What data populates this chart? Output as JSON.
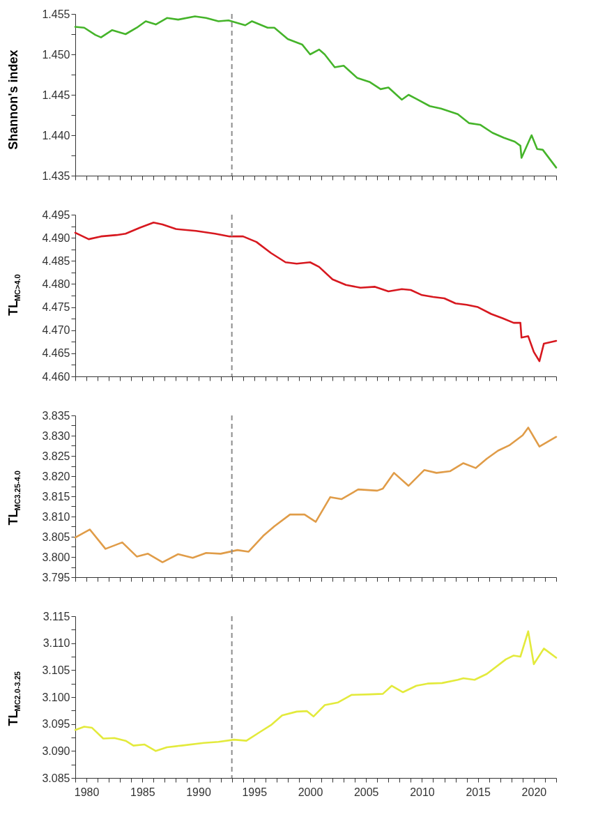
{
  "chart_data": [
    {
      "type": "line",
      "ylabel": "Shannon's index",
      "xlim": [
        1979,
        2022
      ],
      "ylim": [
        1.435,
        1.455
      ],
      "tick_labels": "y",
      "xticks": [
        {
          "value": 1979,
          "label": null
        },
        1980,
        {
          "value": 1981,
          "label": null
        },
        {
          "value": 1982,
          "label": null
        },
        {
          "value": 1983,
          "label": null
        },
        {
          "value": 1984,
          "label": null
        },
        1985,
        {
          "value": 1986,
          "label": null
        },
        {
          "value": 1987,
          "label": null
        },
        {
          "value": 1988,
          "label": null
        },
        {
          "value": 1989,
          "label": null
        },
        1990,
        {
          "value": 1991,
          "label": null
        },
        {
          "value": 1992,
          "label": null
        },
        {
          "value": 1993,
          "label": null
        },
        {
          "value": 1994,
          "label": null
        },
        1995,
        {
          "value": 1996,
          "label": null
        },
        {
          "value": 1997,
          "label": null
        },
        {
          "value": 1998,
          "label": null
        },
        {
          "value": 1999,
          "label": null
        },
        2000,
        {
          "value": 2001,
          "label": null
        },
        {
          "value": 2002,
          "label": null
        },
        {
          "value": 2003,
          "label": null
        },
        {
          "value": 2004,
          "label": null
        },
        2005,
        {
          "value": 2006,
          "label": null
        },
        {
          "value": 2007,
          "label": null
        },
        {
          "value": 2008,
          "label": null
        },
        {
          "value": 2009,
          "label": null
        },
        2010,
        {
          "value": 2011,
          "label": null
        },
        {
          "value": 2012,
          "label": null
        },
        {
          "value": 2013,
          "label": null
        },
        {
          "value": 2014,
          "label": null
        },
        2015,
        {
          "value": 2016,
          "label": null
        },
        {
          "value": 2017,
          "label": null
        },
        {
          "value": 2018,
          "label": null
        },
        {
          "value": 2019,
          "label": null
        },
        2020,
        {
          "value": 2021,
          "label": null
        },
        {
          "value": 2022,
          "label": null
        }
      ],
      "yticks": [
        1.435,
        {
          "value": 1.4375,
          "label": null
        },
        {
          "value": 1.44,
          "label": "1.440"
        },
        {
          "value": 1.4425,
          "label": null
        },
        1.445,
        {
          "value": 1.4475,
          "label": null
        },
        {
          "value": 1.45,
          "label": "1.450"
        },
        {
          "value": 1.4525,
          "label": null
        },
        1.455
      ],
      "x": [
        1979,
        1979.8,
        1980.8,
        1981.3,
        1982.3,
        1983.5,
        1984.5,
        1985.3,
        1986.2,
        1987.2,
        1988.2,
        1989.7,
        1990.7,
        1991.8,
        1992.7,
        1994.2,
        1994.8,
        1996.2,
        1996.8,
        1998,
        1999.3,
        2000,
        2000.8,
        2001.3,
        2002.2,
        2003,
        2004.2,
        2005.3,
        2006.3,
        2007,
        2008.2,
        2008.8,
        2009.5,
        2010.7,
        2011.7,
        2013.2,
        2014.2,
        2015.2,
        2016.3,
        2017.3,
        2018.3,
        2018.8,
        2018.9,
        2019.8,
        2020.3,
        2020.8,
        2022
      ],
      "series": [
        {
          "color": "#45b42a",
          "values": [
            1.4534,
            1.4533,
            1.4524,
            1.4521,
            1.453,
            1.4525,
            1.4533,
            1.4541,
            1.4537,
            1.4545,
            1.4543,
            1.4547,
            1.4545,
            1.4541,
            1.4542,
            1.4536,
            1.4541,
            1.4533,
            1.4533,
            1.4519,
            1.4512,
            1.45,
            1.4506,
            1.45,
            1.4484,
            1.4486,
            1.4471,
            1.4466,
            1.4457,
            1.4459,
            1.4444,
            1.445,
            1.4445,
            1.4436,
            1.4433,
            1.4426,
            1.4415,
            1.4413,
            1.4403,
            1.4397,
            1.4392,
            1.4387,
            1.4372,
            1.44,
            1.4383,
            1.4382,
            1.436
          ]
        }
      ],
      "ref_lines": [
        {
          "axis": "x",
          "value": 1993,
          "color": "#8c8c8c",
          "line_style": "dashed"
        }
      ]
    },
    {
      "type": "line",
      "ylabel": "TL$_{MC>4.0}$",
      "xlim": [
        1979,
        2022
      ],
      "ylim": [
        4.46,
        4.495
      ],
      "tick_labels": "y",
      "xticks": [
        {
          "value": 1979,
          "label": null
        },
        1980,
        {
          "value": 1981,
          "label": null
        },
        {
          "value": 1982,
          "label": null
        },
        {
          "value": 1983,
          "label": null
        },
        {
          "value": 1984,
          "label": null
        },
        1985,
        {
          "value": 1986,
          "label": null
        },
        {
          "value": 1987,
          "label": null
        },
        {
          "value": 1988,
          "label": null
        },
        {
          "value": 1989,
          "label": null
        },
        1990,
        {
          "value": 1991,
          "label": null
        },
        {
          "value": 1992,
          "label": null
        },
        {
          "value": 1993,
          "label": null
        },
        {
          "value": 1994,
          "label": null
        },
        1995,
        {
          "value": 1996,
          "label": null
        },
        {
          "value": 1997,
          "label": null
        },
        {
          "value": 1998,
          "label": null
        },
        {
          "value": 1999,
          "label": null
        },
        2000,
        {
          "value": 2001,
          "label": null
        },
        {
          "value": 2002,
          "label": null
        },
        {
          "value": 2003,
          "label": null
        },
        {
          "value": 2004,
          "label": null
        },
        2005,
        {
          "value": 2006,
          "label": null
        },
        {
          "value": 2007,
          "label": null
        },
        {
          "value": 2008,
          "label": null
        },
        {
          "value": 2009,
          "label": null
        },
        2010,
        {
          "value": 2011,
          "label": null
        },
        {
          "value": 2012,
          "label": null
        },
        {
          "value": 2013,
          "label": null
        },
        {
          "value": 2014,
          "label": null
        },
        2015,
        {
          "value": 2016,
          "label": null
        },
        {
          "value": 2017,
          "label": null
        },
        {
          "value": 2018,
          "label": null
        },
        {
          "value": 2019,
          "label": null
        },
        2020,
        {
          "value": 2021,
          "label": null
        },
        {
          "value": 2022,
          "label": null
        }
      ],
      "yticks": [
        {
          "value": 4.46,
          "label": "4.460"
        },
        {
          "value": 4.4625,
          "label": null
        },
        4.465,
        {
          "value": 4.4675,
          "label": null
        },
        {
          "value": 4.47,
          "label": "4.470"
        },
        {
          "value": 4.4725,
          "label": null
        },
        4.475,
        {
          "value": 4.4775,
          "label": null
        },
        {
          "value": 4.48,
          "label": "4.480"
        },
        {
          "value": 4.4825,
          "label": null
        },
        4.485,
        {
          "value": 4.4875,
          "label": null
        },
        {
          "value": 4.49,
          "label": "4.490"
        },
        {
          "value": 4.4925,
          "label": null
        },
        4.495
      ],
      "x": [
        1979,
        1980.2,
        1981.3,
        1982.7,
        1983.5,
        1984.8,
        1986,
        1986.8,
        1988,
        1989.8,
        1991.5,
        1992.8,
        1994,
        1995.2,
        1996.5,
        1997.8,
        1998.8,
        2000,
        2000.8,
        2002,
        2003.2,
        2004.5,
        2005.8,
        2007,
        2008.2,
        2009,
        2010,
        2011,
        2012,
        2013,
        2014,
        2015,
        2016.2,
        2017.2,
        2018.2,
        2018.8,
        2018.9,
        2019.5,
        2020,
        2020.5,
        2020.9,
        2022
      ],
      "series": [
        {
          "color": "#d7181f",
          "values": [
            4.4911,
            4.4897,
            4.4903,
            4.4906,
            4.4909,
            4.4922,
            4.4933,
            4.4929,
            4.4919,
            4.4915,
            4.4909,
            4.4903,
            4.4903,
            4.4891,
            4.4867,
            4.4847,
            4.4844,
            4.4847,
            4.4837,
            4.481,
            4.4798,
            4.4792,
            4.4794,
            4.4784,
            4.4789,
            4.4787,
            4.4776,
            4.4772,
            4.4769,
            4.4758,
            4.4755,
            4.475,
            4.4735,
            4.4726,
            4.4716,
            4.4716,
            4.4684,
            4.4687,
            4.4653,
            4.4633,
            4.4671,
            4.4677
          ]
        }
      ],
      "ref_lines": [
        {
          "axis": "x",
          "value": 1993,
          "color": "#8c8c8c",
          "line_style": "dashed"
        }
      ]
    },
    {
      "type": "line",
      "ylabel": "TL$_{MC3.25-4.0}$",
      "xlim": [
        1979,
        2022
      ],
      "ylim": [
        3.795,
        3.835
      ],
      "tick_labels": "y",
      "xticks": [
        {
          "value": 1979,
          "label": null
        },
        1980,
        {
          "value": 1981,
          "label": null
        },
        {
          "value": 1982,
          "label": null
        },
        {
          "value": 1983,
          "label": null
        },
        {
          "value": 1984,
          "label": null
        },
        1985,
        {
          "value": 1986,
          "label": null
        },
        {
          "value": 1987,
          "label": null
        },
        {
          "value": 1988,
          "label": null
        },
        {
          "value": 1989,
          "label": null
        },
        1990,
        {
          "value": 1991,
          "label": null
        },
        {
          "value": 1992,
          "label": null
        },
        {
          "value": 1993,
          "label": null
        },
        {
          "value": 1994,
          "label": null
        },
        1995,
        {
          "value": 1996,
          "label": null
        },
        {
          "value": 1997,
          "label": null
        },
        {
          "value": 1998,
          "label": null
        },
        {
          "value": 1999,
          "label": null
        },
        2000,
        {
          "value": 2001,
          "label": null
        },
        {
          "value": 2002,
          "label": null
        },
        {
          "value": 2003,
          "label": null
        },
        {
          "value": 2004,
          "label": null
        },
        2005,
        {
          "value": 2006,
          "label": null
        },
        {
          "value": 2007,
          "label": null
        },
        {
          "value": 2008,
          "label": null
        },
        {
          "value": 2009,
          "label": null
        },
        2010,
        {
          "value": 2011,
          "label": null
        },
        {
          "value": 2012,
          "label": null
        },
        {
          "value": 2013,
          "label": null
        },
        {
          "value": 2014,
          "label": null
        },
        2015,
        {
          "value": 2016,
          "label": null
        },
        {
          "value": 2017,
          "label": null
        },
        {
          "value": 2018,
          "label": null
        },
        {
          "value": 2019,
          "label": null
        },
        2020,
        {
          "value": 2021,
          "label": null
        },
        {
          "value": 2022,
          "label": null
        }
      ],
      "yticks": [
        3.795,
        {
          "value": 3.7975,
          "label": null
        },
        {
          "value": 3.8,
          "label": "3.800"
        },
        {
          "value": 3.8025,
          "label": null
        },
        3.805,
        {
          "value": 3.8075,
          "label": null
        },
        {
          "value": 3.81,
          "label": "3.810"
        },
        {
          "value": 3.8125,
          "label": null
        },
        3.815,
        {
          "value": 3.8175,
          "label": null
        },
        {
          "value": 3.82,
          "label": "3.820"
        },
        {
          "value": 3.8225,
          "label": null
        },
        3.825,
        {
          "value": 3.8275,
          "label": null
        },
        {
          "value": 3.83,
          "label": "3.830"
        },
        {
          "value": 3.8325,
          "label": null
        },
        3.835
      ],
      "x": [
        1979,
        1980.3,
        1981.7,
        1983.2,
        1984.5,
        1985.5,
        1986.8,
        1988.2,
        1989.5,
        1990.7,
        1992,
        1993.5,
        1994.5,
        1995.8,
        1996.8,
        1998.2,
        1999.5,
        2000.5,
        2001.8,
        2002.8,
        2004.3,
        2006,
        2006.5,
        2007.5,
        2008.8,
        2010.2,
        2011.3,
        2012.5,
        2013.7,
        2014.8,
        2015.8,
        2016.8,
        2017.8,
        2019,
        2019.5,
        2020.5,
        2022
      ],
      "series": [
        {
          "color": "#e09c48",
          "values": [
            3.8048,
            3.8068,
            3.802,
            3.8036,
            3.8001,
            3.8008,
            3.7987,
            3.8007,
            3.7998,
            3.801,
            3.8008,
            3.8017,
            3.8013,
            3.8052,
            3.8076,
            3.8105,
            3.8105,
            3.8087,
            3.8148,
            3.8143,
            3.8167,
            3.8164,
            3.8169,
            3.8208,
            3.8176,
            3.8215,
            3.8208,
            3.8212,
            3.8232,
            3.822,
            3.8243,
            3.8263,
            3.8276,
            3.8301,
            3.832,
            3.8273,
            3.8297
          ]
        }
      ],
      "ref_lines": [
        {
          "axis": "x",
          "value": 1993,
          "color": "#8c8c8c",
          "line_style": "dashed"
        }
      ]
    },
    {
      "type": "line",
      "ylabel": "TL$_{MC2.0-3.25}$",
      "xlim": [
        1979,
        2022
      ],
      "ylim": [
        3.085,
        3.115
      ],
      "xticks": [
        {
          "value": 1979,
          "label": null
        },
        1980,
        {
          "value": 1981,
          "label": null
        },
        {
          "value": 1982,
          "label": null
        },
        {
          "value": 1983,
          "label": null
        },
        {
          "value": 1984,
          "label": null
        },
        1985,
        {
          "value": 1986,
          "label": null
        },
        {
          "value": 1987,
          "label": null
        },
        {
          "value": 1988,
          "label": null
        },
        {
          "value": 1989,
          "label": null
        },
        1990,
        {
          "value": 1991,
          "label": null
        },
        {
          "value": 1992,
          "label": null
        },
        {
          "value": 1993,
          "label": null
        },
        {
          "value": 1994,
          "label": null
        },
        1995,
        {
          "value": 1996,
          "label": null
        },
        {
          "value": 1997,
          "label": null
        },
        {
          "value": 1998,
          "label": null
        },
        {
          "value": 1999,
          "label": null
        },
        2000,
        {
          "value": 2001,
          "label": null
        },
        {
          "value": 2002,
          "label": null
        },
        {
          "value": 2003,
          "label": null
        },
        {
          "value": 2004,
          "label": null
        },
        2005,
        {
          "value": 2006,
          "label": null
        },
        {
          "value": 2007,
          "label": null
        },
        {
          "value": 2008,
          "label": null
        },
        {
          "value": 2009,
          "label": null
        },
        2010,
        {
          "value": 2011,
          "label": null
        },
        {
          "value": 2012,
          "label": null
        },
        {
          "value": 2013,
          "label": null
        },
        {
          "value": 2014,
          "label": null
        },
        2015,
        {
          "value": 2016,
          "label": null
        },
        {
          "value": 2017,
          "label": null
        },
        {
          "value": 2018,
          "label": null
        },
        {
          "value": 2019,
          "label": null
        },
        2020,
        {
          "value": 2021,
          "label": null
        },
        {
          "value": 2022,
          "label": null
        }
      ],
      "yticks": [
        3.085,
        {
          "value": 3.0875,
          "label": null
        },
        {
          "value": 3.09,
          "label": "3.090"
        },
        {
          "value": 3.0925,
          "label": null
        },
        3.095,
        {
          "value": 3.0975,
          "label": null
        },
        {
          "value": 3.1,
          "label": "3.100"
        },
        {
          "value": 3.1025,
          "label": null
        },
        3.105,
        {
          "value": 3.1075,
          "label": null
        },
        {
          "value": 3.11,
          "label": "3.110"
        },
        {
          "value": 3.1125,
          "label": null
        },
        3.115
      ],
      "x": [
        1979,
        1979.8,
        1980.5,
        1981.5,
        1982.5,
        1983.5,
        1984.2,
        1985.2,
        1986.2,
        1987.2,
        1988.5,
        1990.5,
        1991.8,
        1993.2,
        1994.3,
        1995.5,
        1996.5,
        1997.5,
        1998.8,
        1999.7,
        2000.3,
        2001.3,
        2002.5,
        2003.7,
        2005.3,
        2006.5,
        2007.3,
        2008.3,
        2009.5,
        2010.5,
        2011.8,
        2013.2,
        2013.7,
        2014.7,
        2015.8,
        2017.5,
        2018.2,
        2018.8,
        2019.5,
        2020,
        2020.9,
        2022
      ],
      "series": [
        {
          "color": "#e3ea3c",
          "values": [
            3.0939,
            3.0945,
            3.0943,
            3.0923,
            3.0924,
            3.0919,
            3.091,
            3.0912,
            3.09,
            3.0907,
            3.091,
            3.0915,
            3.0917,
            3.0921,
            3.0919,
            3.0935,
            3.0948,
            3.0966,
            3.0973,
            3.0974,
            3.0964,
            3.0985,
            3.099,
            3.1004,
            3.1005,
            3.1006,
            3.1021,
            3.1009,
            3.1021,
            3.1025,
            3.1026,
            3.1032,
            3.1035,
            3.1032,
            3.1043,
            3.107,
            3.1077,
            3.1075,
            3.1122,
            3.1061,
            3.109,
            3.1073
          ]
        }
      ],
      "ref_lines": [
        {
          "axis": "x",
          "value": 1993,
          "color": "#8c8c8c",
          "line_style": "dashed"
        }
      ]
    }
  ]
}
